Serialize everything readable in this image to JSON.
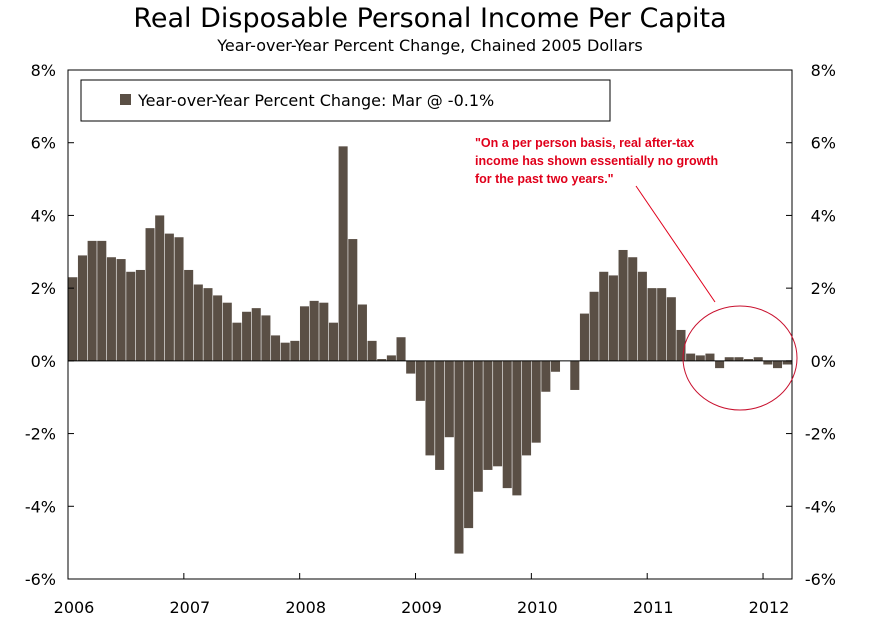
{
  "colors": {
    "bar": "#5a4f45",
    "axis": "#000000",
    "annotation": "#e0001b",
    "circle": "#c8102e"
  },
  "chart_data": {
    "type": "bar",
    "title": "Real Disposable Personal Income Per Capita",
    "subtitle": "Year-over-Year Percent Change, Chained 2005 Dollars",
    "legend": "Year-over-Year Percent Change: Mar @ -0.1%",
    "legend_position": "top-left",
    "grid": false,
    "ylim": [
      -6,
      8
    ],
    "y_ticks": [
      "8%",
      "6%",
      "4%",
      "2%",
      "0%",
      "-2%",
      "-4%",
      "-6%"
    ],
    "x_ticks": [
      "2006",
      "2007",
      "2008",
      "2009",
      "2010",
      "2011",
      "2012"
    ],
    "annotation": "\"On a per person basis, real after-tax income has shown essentially no growth for the past two years.\"",
    "annotation_lines": [
      "\"On a per person basis, real after-tax",
      "income has shown essentially no growth",
      "for the past two years.\""
    ],
    "series": [
      {
        "name": "Year-over-Year Percent Change",
        "x": [
          "2006-01",
          "2006-02",
          "2006-03",
          "2006-04",
          "2006-05",
          "2006-06",
          "2006-07",
          "2006-08",
          "2006-09",
          "2006-10",
          "2006-11",
          "2006-12",
          "2007-01",
          "2007-02",
          "2007-03",
          "2007-04",
          "2007-05",
          "2007-06",
          "2007-07",
          "2007-08",
          "2007-09",
          "2007-10",
          "2007-11",
          "2007-12",
          "2008-01",
          "2008-02",
          "2008-03",
          "2008-04",
          "2008-05",
          "2008-06",
          "2008-07",
          "2008-08",
          "2008-09",
          "2008-10",
          "2008-11",
          "2008-12",
          "2009-01",
          "2009-02",
          "2009-03",
          "2009-04",
          "2009-05",
          "2009-06",
          "2009-07",
          "2009-08",
          "2009-09",
          "2009-10",
          "2009-11",
          "2009-12",
          "2010-01",
          "2010-02",
          "2010-03",
          "2010-04",
          "2010-05",
          "2010-06",
          "2010-07",
          "2010-08",
          "2010-09",
          "2010-10",
          "2010-11",
          "2010-12",
          "2011-01",
          "2011-02",
          "2011-03",
          "2011-04",
          "2011-05",
          "2011-06",
          "2011-07",
          "2011-08",
          "2011-09",
          "2011-10",
          "2011-11",
          "2011-12",
          "2012-01",
          "2012-02",
          "2012-03"
        ],
        "values": [
          2.3,
          2.9,
          3.3,
          3.3,
          2.85,
          2.8,
          2.45,
          2.5,
          3.65,
          4.0,
          3.5,
          3.4,
          2.5,
          2.1,
          2.0,
          1.8,
          1.6,
          1.05,
          1.35,
          1.45,
          1.25,
          0.7,
          0.5,
          0.55,
          1.5,
          1.65,
          1.6,
          1.05,
          5.9,
          3.35,
          1.55,
          0.55,
          0.05,
          0.15,
          0.65,
          -0.35,
          -1.1,
          -2.6,
          -3.0,
          -2.1,
          -5.3,
          -4.6,
          -3.6,
          -3.0,
          -2.9,
          -3.5,
          -3.7,
          -2.6,
          -2.25,
          -0.85,
          -0.3,
          0.0,
          -0.8,
          1.3,
          1.9,
          2.45,
          2.35,
          3.05,
          2.85,
          2.45,
          2.0,
          2.0,
          1.75,
          0.85,
          0.2,
          0.15,
          0.2,
          -0.2,
          0.1,
          0.1,
          0.05,
          0.1,
          -0.1,
          -0.2,
          -0.1
        ]
      }
    ]
  }
}
